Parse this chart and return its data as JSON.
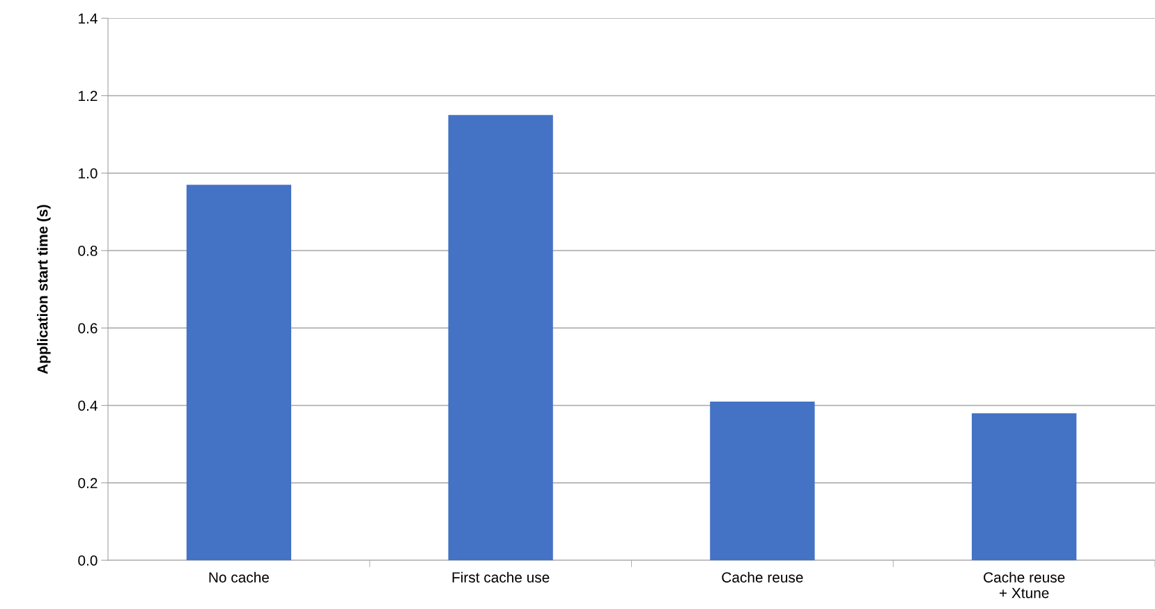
{
  "chart_data": {
    "type": "bar",
    "ylabel": "Application start time (s)",
    "categories": [
      "No cache",
      "First cache use",
      "Cache reuse",
      "Cache reuse\n+ Xtune"
    ],
    "values": [
      0.97,
      1.15,
      0.41,
      0.38
    ],
    "color": "#4472c4",
    "ylim": [
      0,
      1.4
    ],
    "yticks": [
      {
        "value": 0,
        "label": "0.0"
      },
      {
        "value": 0.2,
        "label": "0.2"
      },
      {
        "value": 0.4,
        "label": "0.4"
      },
      {
        "value": 0.6,
        "label": "0.6"
      },
      {
        "value": 0.8,
        "label": "0.8"
      },
      {
        "value": 1.0,
        "label": "1.0"
      },
      {
        "value": 1.2,
        "label": "1.2"
      },
      {
        "value": 1.4,
        "label": "1.4"
      }
    ],
    "grid": "y"
  }
}
